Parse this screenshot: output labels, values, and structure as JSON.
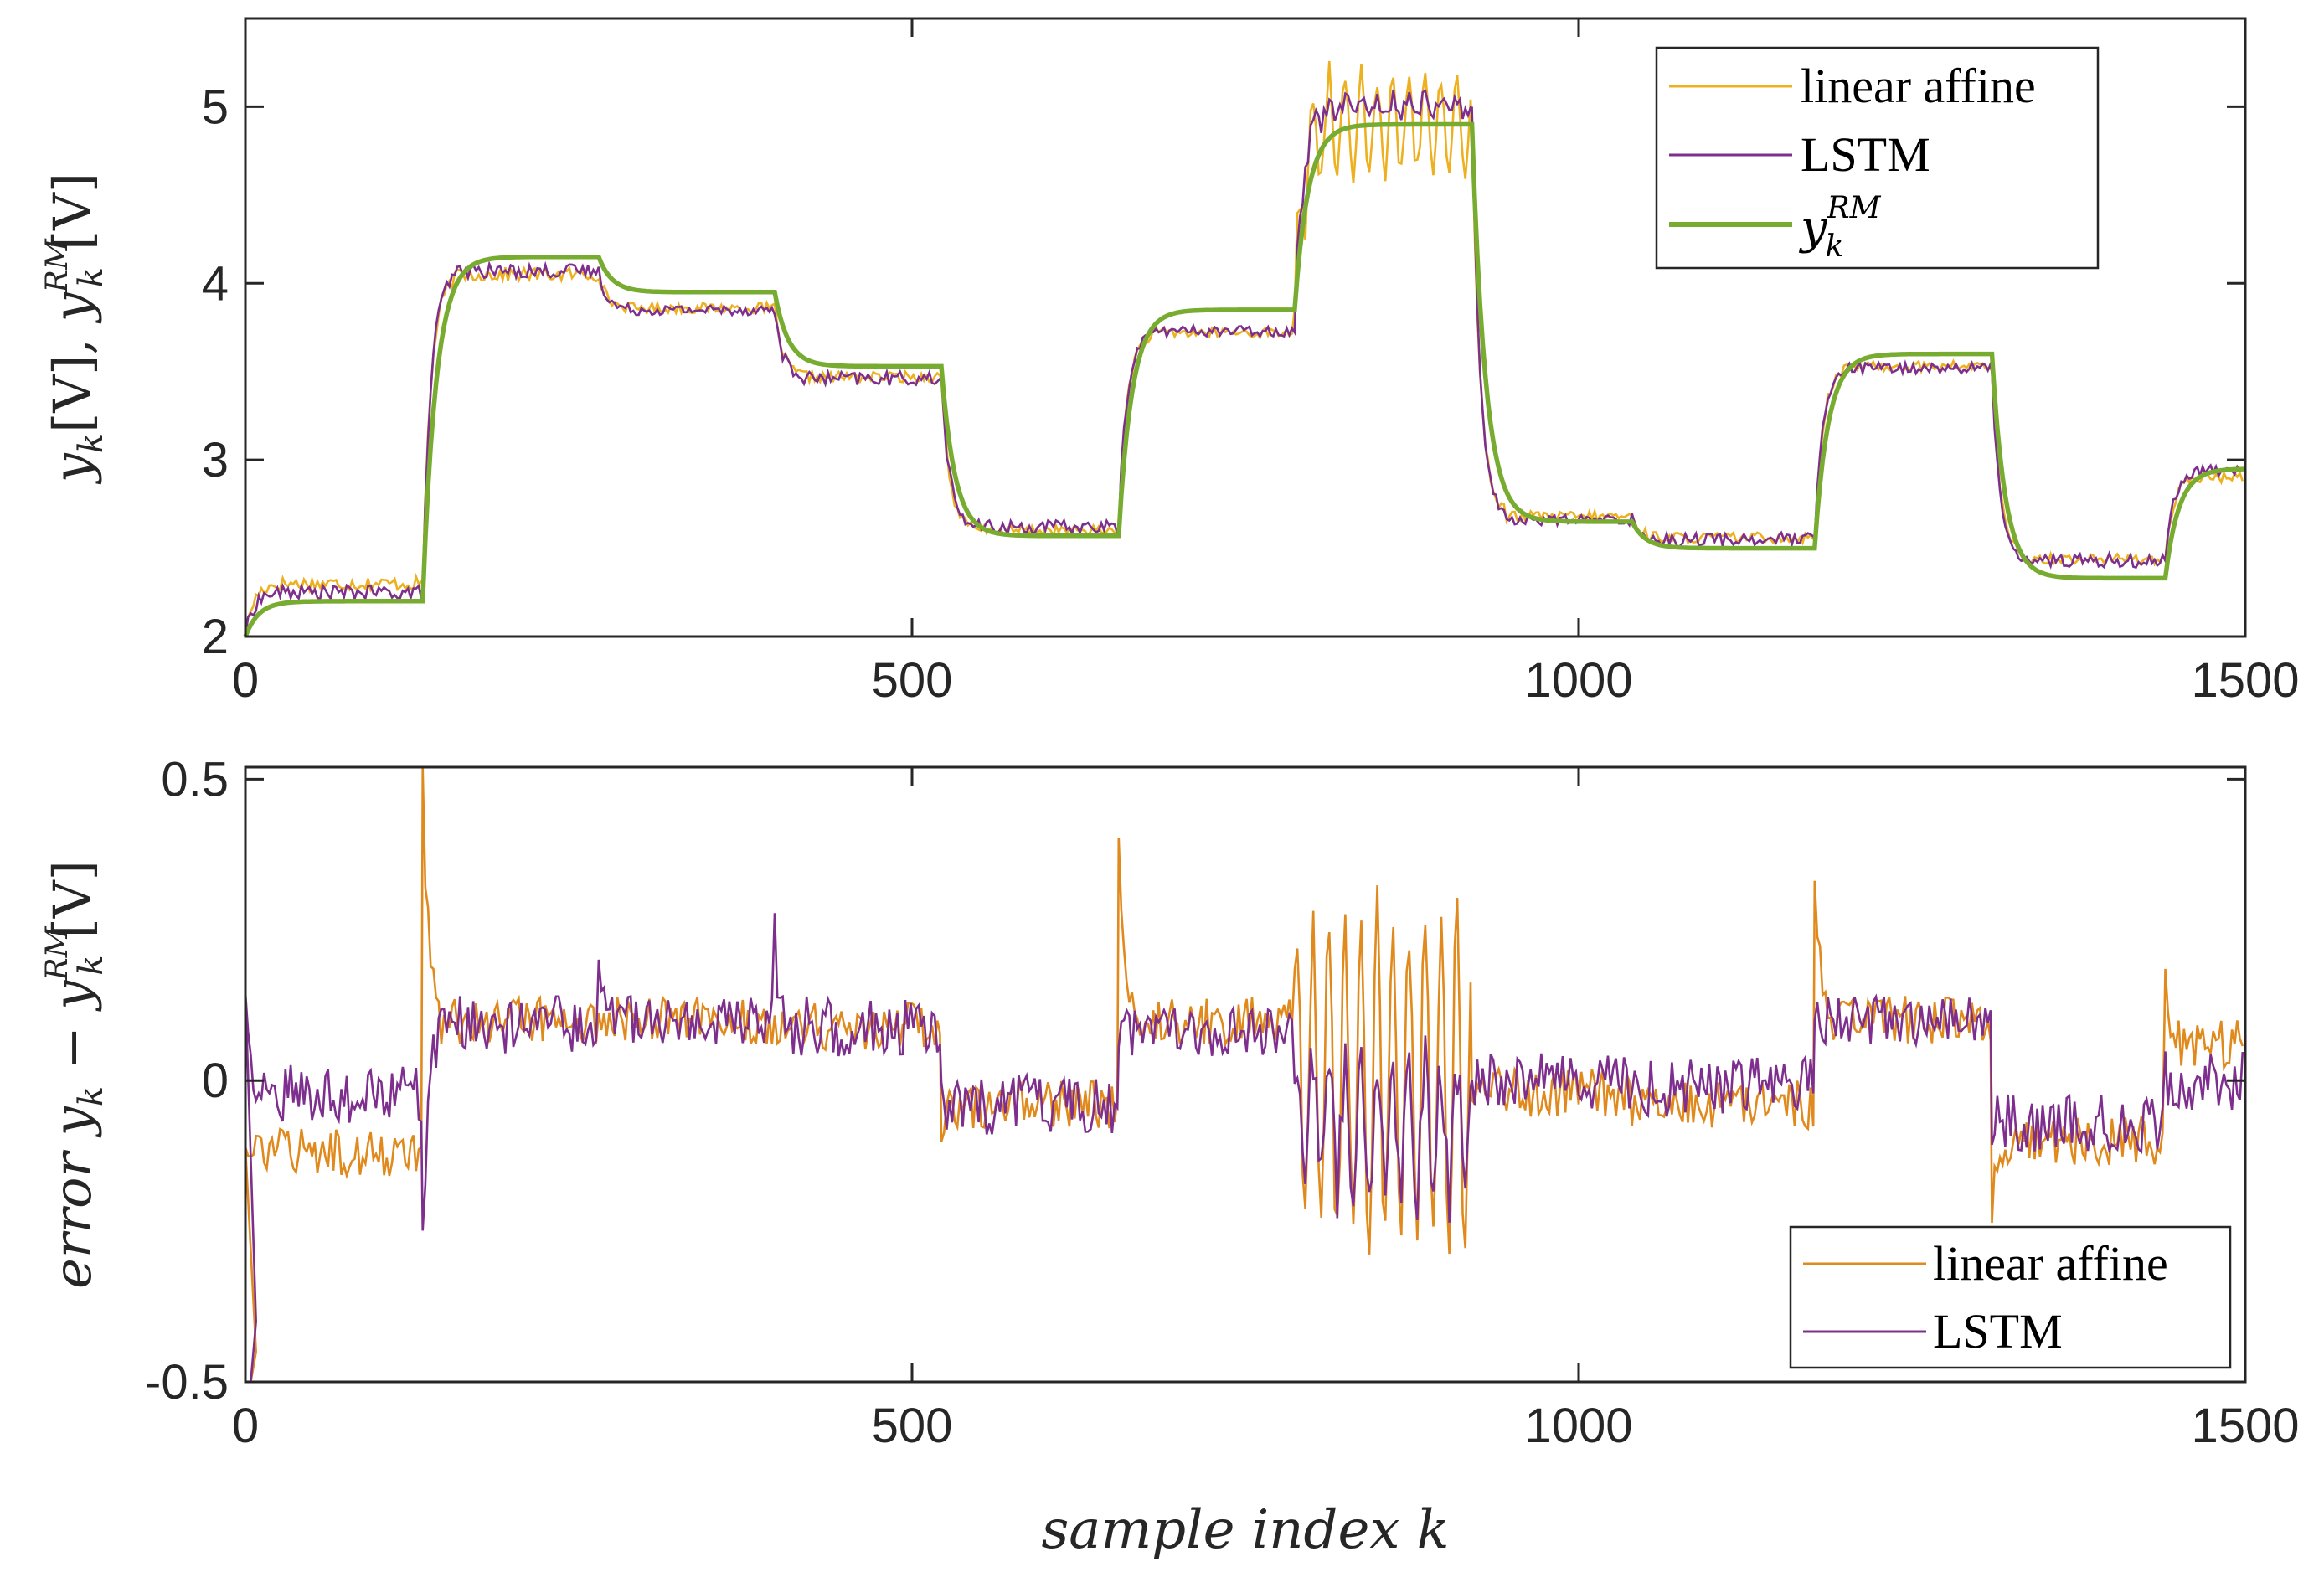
{
  "colors": {
    "linear_affine_top": "#EDB120",
    "linear_affine_bottom": "#E08A1E",
    "lstm": "#7E2F8E",
    "reference": "#77AC30",
    "axis": "#262626"
  },
  "chart_data": [
    {
      "type": "line",
      "name": "top",
      "ylabel": "y_k[V], y_k^RM[V]",
      "ylabel_parts": {
        "y1": "y",
        "k1": "k",
        "v1": "[V], ",
        "y2": "y",
        "sup": "RM",
        "k2": "k",
        "v2": "[V]"
      },
      "xlim": [
        0,
        1500
      ],
      "ylim": [
        2,
        5.5
      ],
      "xticks": [
        0,
        500,
        1000,
        1500
      ],
      "xtick_labels": [
        "0",
        "500",
        "1000",
        "1500"
      ],
      "yticks": [
        2,
        3,
        4,
        5
      ],
      "ytick_labels": [
        "2",
        "3",
        "4",
        "5"
      ],
      "legend": {
        "position": "top-right",
        "entries": [
          "linear affine",
          "LSTM",
          "y_k^RM"
        ],
        "y_label": "y",
        "y_sub": "k",
        "y_sup": "RM"
      },
      "reference_steps": [
        {
          "x0": 0,
          "x1": 133,
          "y": 2.2
        },
        {
          "x0": 133,
          "x1": 265,
          "y": 4.15
        },
        {
          "x0": 265,
          "x1": 397,
          "y": 3.95
        },
        {
          "x0": 397,
          "x1": 522,
          "y": 3.53
        },
        {
          "x0": 522,
          "x1": 655,
          "y": 2.57
        },
        {
          "x0": 655,
          "x1": 787,
          "y": 3.85
        },
        {
          "x0": 787,
          "x1": 920,
          "y": 4.9
        },
        {
          "x0": 920,
          "x1": 1040,
          "y": 2.65
        },
        {
          "x0": 1040,
          "x1": 1177,
          "y": 2.5
        },
        {
          "x0": 1177,
          "x1": 1310,
          "y": 3.6
        },
        {
          "x0": 1310,
          "x1": 1440,
          "y": 2.33
        },
        {
          "x0": 1440,
          "x1": 1500,
          "y": 2.95
        }
      ],
      "series": [
        {
          "name": "linear affine",
          "segments": [
            {
              "x0": 0,
              "x1": 133,
              "mean": 2.3,
              "noise": 0.04
            },
            {
              "x0": 133,
              "x1": 265,
              "mean": 4.05,
              "noise": 0.04
            },
            {
              "x0": 265,
              "x1": 397,
              "mean": 3.86,
              "noise": 0.03
            },
            {
              "x0": 397,
              "x1": 522,
              "mean": 3.47,
              "noise": 0.03
            },
            {
              "x0": 522,
              "x1": 655,
              "mean": 2.6,
              "noise": 0.03
            },
            {
              "x0": 655,
              "x1": 787,
              "mean": 3.72,
              "noise": 0.03
            },
            {
              "x0": 787,
              "x1": 920,
              "mean": 4.9,
              "noise": 0.05,
              "osc": 0.35,
              "period": 6
            },
            {
              "x0": 920,
              "x1": 1040,
              "mean": 2.68,
              "noise": 0.03
            },
            {
              "x0": 1040,
              "x1": 1177,
              "mean": 2.56,
              "noise": 0.03
            },
            {
              "x0": 1177,
              "x1": 1310,
              "mean": 3.53,
              "noise": 0.03
            },
            {
              "x0": 1310,
              "x1": 1440,
              "mean": 2.44,
              "noise": 0.03
            },
            {
              "x0": 1440,
              "x1": 1500,
              "mean": 2.9,
              "noise": 0.03
            }
          ]
        },
        {
          "name": "LSTM",
          "segments": [
            {
              "x0": 0,
              "x1": 133,
              "mean": 2.25,
              "noise": 0.04
            },
            {
              "x0": 133,
              "x1": 265,
              "mean": 4.07,
              "noise": 0.04
            },
            {
              "x0": 265,
              "x1": 397,
              "mean": 3.85,
              "noise": 0.03
            },
            {
              "x0": 397,
              "x1": 522,
              "mean": 3.46,
              "noise": 0.04
            },
            {
              "x0": 522,
              "x1": 655,
              "mean": 2.62,
              "noise": 0.04
            },
            {
              "x0": 655,
              "x1": 787,
              "mean": 3.73,
              "noise": 0.03
            },
            {
              "x0": 787,
              "x1": 920,
              "mean": 5.0,
              "noise": 0.06,
              "osc": 0.07,
              "period": 6
            },
            {
              "x0": 920,
              "x1": 1040,
              "mean": 2.66,
              "noise": 0.03
            },
            {
              "x0": 1040,
              "x1": 1177,
              "mean": 2.55,
              "noise": 0.04
            },
            {
              "x0": 1177,
              "x1": 1310,
              "mean": 3.52,
              "noise": 0.03
            },
            {
              "x0": 1310,
              "x1": 1440,
              "mean": 2.43,
              "noise": 0.04
            },
            {
              "x0": 1440,
              "x1": 1500,
              "mean": 2.94,
              "noise": 0.03
            }
          ]
        }
      ]
    },
    {
      "type": "line",
      "name": "bottom",
      "xlabel": "sample index k",
      "ylabel": "error y_k - y_k^RM[V]",
      "ylabel_parts": {
        "err": "error ",
        "y1": "y",
        "k1": "k",
        "minus": " − ",
        "y2": "y",
        "sup": "RM",
        "k2": "k",
        "v2": "[V]"
      },
      "xlim": [
        0,
        1500
      ],
      "ylim": [
        -0.5,
        0.52
      ],
      "xticks": [
        0,
        500,
        1000,
        1500
      ],
      "xtick_labels": [
        "0",
        "500",
        "1000",
        "1500"
      ],
      "yticks": [
        -0.5,
        0,
        0.5
      ],
      "ytick_labels": [
        "-0.5",
        "0",
        "0.5"
      ],
      "legend": {
        "position": "bottom-right",
        "entries": [
          "linear affine",
          "LSTM"
        ]
      },
      "series": [
        {
          "name": "linear affine",
          "segments": [
            {
              "x0": 0,
              "x1": 133,
              "mean": -0.12,
              "noise": 0.04
            },
            {
              "x0": 133,
              "x1": 265,
              "mean": 0.1,
              "noise": 0.04,
              "spike": 0.52
            },
            {
              "x0": 265,
              "x1": 397,
              "mean": 0.1,
              "noise": 0.04
            },
            {
              "x0": 397,
              "x1": 522,
              "mean": 0.09,
              "noise": 0.04
            },
            {
              "x0": 522,
              "x1": 655,
              "mean": -0.04,
              "noise": 0.04,
              "spike": -0.1
            },
            {
              "x0": 655,
              "x1": 787,
              "mean": 0.1,
              "noise": 0.04,
              "spike": 0.38
            },
            {
              "x0": 787,
              "x1": 920,
              "mean": 0.0,
              "noise": 0.04,
              "osc": 0.34,
              "period": 6
            },
            {
              "x0": 920,
              "x1": 1040,
              "mean": -0.02,
              "noise": 0.04
            },
            {
              "x0": 1040,
              "x1": 1177,
              "mean": -0.04,
              "noise": 0.04
            },
            {
              "x0": 1177,
              "x1": 1310,
              "mean": 0.1,
              "noise": 0.04,
              "spike": 0.34
            },
            {
              "x0": 1310,
              "x1": 1440,
              "mean": -0.1,
              "noise": 0.04,
              "spike": -0.2
            },
            {
              "x0": 1440,
              "x1": 1500,
              "mean": 0.06,
              "noise": 0.04,
              "spike": 0.15
            }
          ]
        },
        {
          "name": "LSTM",
          "segments": [
            {
              "x0": 0,
              "x1": 133,
              "mean": -0.02,
              "noise": 0.05,
              "spike": 0.13
            },
            {
              "x0": 133,
              "x1": 265,
              "mean": 0.09,
              "noise": 0.05,
              "spike": -0.29
            },
            {
              "x0": 265,
              "x1": 397,
              "mean": 0.1,
              "noise": 0.04,
              "spike": 0.2
            },
            {
              "x0": 397,
              "x1": 522,
              "mean": 0.09,
              "noise": 0.05,
              "spike": 0.23
            },
            {
              "x0": 522,
              "x1": 655,
              "mean": -0.04,
              "noise": 0.05
            },
            {
              "x0": 655,
              "x1": 787,
              "mean": 0.08,
              "noise": 0.04
            },
            {
              "x0": 787,
              "x1": 920,
              "mean": -0.08,
              "noise": 0.06,
              "osc": 0.14,
              "period": 6
            },
            {
              "x0": 920,
              "x1": 1040,
              "mean": 0.0,
              "noise": 0.05
            },
            {
              "x0": 1040,
              "x1": 1177,
              "mean": -0.01,
              "noise": 0.05
            },
            {
              "x0": 1177,
              "x1": 1310,
              "mean": 0.1,
              "noise": 0.04
            },
            {
              "x0": 1310,
              "x1": 1440,
              "mean": -0.07,
              "noise": 0.05
            },
            {
              "x0": 1440,
              "x1": 1500,
              "mean": 0.0,
              "noise": 0.05
            }
          ]
        }
      ]
    }
  ]
}
